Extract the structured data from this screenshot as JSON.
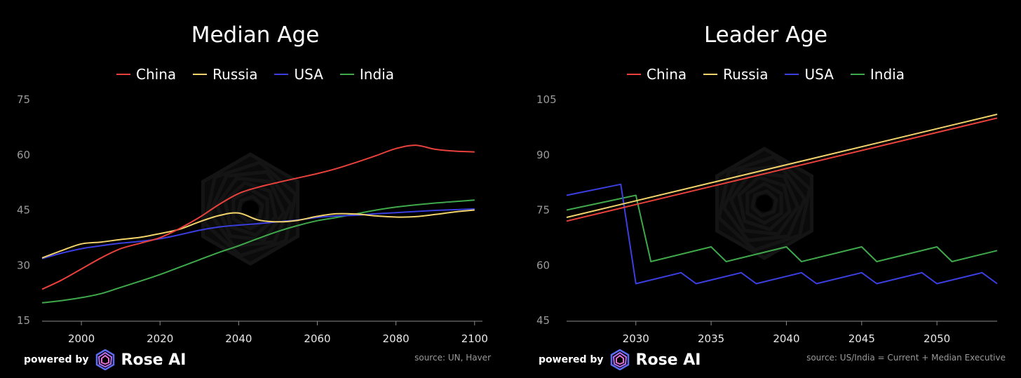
{
  "colors": {
    "China": "#e8413c",
    "Russia": "#f2d36b",
    "USA": "#3b3fe0",
    "India": "#3fa84b",
    "axis": "#9a9a9a",
    "background": "#000000"
  },
  "branding": {
    "powered_by": "powered by",
    "brand": "Rose AI"
  },
  "left": {
    "source": "source: UN, Haver",
    "chart_data": {
      "type": "line",
      "title": "Median Age",
      "xlabel": "",
      "ylabel": "",
      "xlim": [
        1990,
        2102
      ],
      "ylim": [
        15,
        75
      ],
      "xticks": [
        2000,
        2020,
        2040,
        2060,
        2080,
        2100
      ],
      "yticks": [
        15,
        30,
        45,
        60,
        75
      ],
      "legend_position": "top-center",
      "grid": false,
      "series": [
        {
          "name": "China",
          "x": [
            1990,
            1995,
            2000,
            2005,
            2010,
            2015,
            2020,
            2025,
            2030,
            2035,
            2040,
            2045,
            2050,
            2055,
            2060,
            2065,
            2070,
            2075,
            2080,
            2085,
            2090,
            2095,
            2100
          ],
          "values": [
            23.5,
            26,
            29,
            32,
            34.5,
            36,
            37.5,
            40,
            43,
            46.5,
            49.5,
            51.2,
            52.5,
            53.7,
            54.9,
            56.3,
            58,
            59.8,
            61.7,
            62.6,
            61.5,
            61,
            60.8
          ]
        },
        {
          "name": "Russia",
          "x": [
            1990,
            1995,
            2000,
            2005,
            2010,
            2015,
            2020,
            2025,
            2030,
            2035,
            2040,
            2045,
            2050,
            2055,
            2060,
            2065,
            2070,
            2075,
            2080,
            2085,
            2090,
            2095,
            2100
          ],
          "values": [
            32,
            34,
            35.8,
            36.3,
            37,
            37.6,
            38.6,
            39.8,
            41.8,
            43.5,
            44.2,
            42.3,
            41.8,
            42.2,
            43.3,
            44,
            43.9,
            43.4,
            43.1,
            43.2,
            43.8,
            44.5,
            45
          ]
        },
        {
          "name": "USA",
          "x": [
            1990,
            1995,
            2000,
            2005,
            2010,
            2015,
            2020,
            2025,
            2030,
            2035,
            2040,
            2045,
            2050,
            2055,
            2060,
            2065,
            2070,
            2075,
            2080,
            2085,
            2090,
            2095,
            2100
          ],
          "values": [
            31.8,
            33.3,
            34.5,
            35.3,
            36,
            36.5,
            37.2,
            38.3,
            39.5,
            40.4,
            40.9,
            41.3,
            41.8,
            42.3,
            43,
            43.4,
            43.6,
            44,
            44.3,
            44.6,
            44.9,
            45.1,
            45.3
          ]
        },
        {
          "name": "India",
          "x": [
            1990,
            1995,
            2000,
            2005,
            2010,
            2015,
            2020,
            2025,
            2030,
            2035,
            2040,
            2045,
            2050,
            2055,
            2060,
            2065,
            2070,
            2075,
            2080,
            2085,
            2090,
            2095,
            2100
          ],
          "values": [
            19.8,
            20.4,
            21.2,
            22.3,
            24,
            25.7,
            27.5,
            29.5,
            31.5,
            33.5,
            35.3,
            37.3,
            39.2,
            40.8,
            42.1,
            43,
            44,
            45,
            45.8,
            46.4,
            46.9,
            47.3,
            47.7
          ]
        }
      ]
    }
  },
  "right": {
    "source": "source: US/India = Current + Median Executive",
    "chart_data": {
      "type": "line",
      "title": "Leader Age",
      "xlabel": "",
      "ylabel": "",
      "xlim": [
        2025.4,
        2054
      ],
      "ylim": [
        45,
        105
      ],
      "xticks": [
        2030,
        2035,
        2040,
        2045,
        2050
      ],
      "yticks": [
        45,
        60,
        75,
        90,
        105
      ],
      "legend_position": "top-center",
      "grid": false,
      "series": [
        {
          "name": "China",
          "x": [
            2025.4,
            2054
          ],
          "values": [
            72,
            100
          ]
        },
        {
          "name": "Russia",
          "x": [
            2025.4,
            2054
          ],
          "values": [
            73,
            101
          ]
        },
        {
          "name": "USA",
          "x": [
            2025.4,
            2029,
            2030,
            2033,
            2034,
            2037,
            2038,
            2041,
            2042,
            2045,
            2046,
            2049,
            2050,
            2053,
            2054
          ],
          "values": [
            79,
            82,
            55,
            58,
            55,
            58,
            55,
            58,
            55,
            58,
            55,
            58,
            55,
            58,
            55
          ]
        },
        {
          "name": "India",
          "x": [
            2025.4,
            2030,
            2031,
            2035,
            2036,
            2040,
            2041,
            2045,
            2046,
            2050,
            2051,
            2054
          ],
          "values": [
            75,
            79,
            61,
            65,
            61,
            65,
            61,
            65,
            61,
            65,
            61,
            64
          ]
        }
      ]
    }
  }
}
